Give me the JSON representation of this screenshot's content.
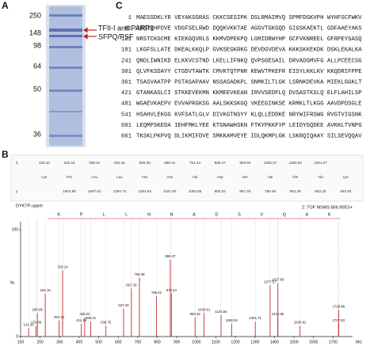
{
  "gel": {
    "panel_label": "A",
    "markers": [
      "250",
      "148",
      "98",
      "64",
      "50",
      "36"
    ],
    "bands": [
      "TFII-I and PARP1",
      "SFPQ/PSF"
    ]
  },
  "sequence": {
    "panel_label": "C",
    "lines": [
      {
        "start": "1",
        "text": "MAESSDKLYR VEYAKSGRAS CKKCSESIPK DSLRMAIMVQ SPMFDGKVPH WYHFSCFWKV"
      },
      {
        "start": "61",
        "text": "GHSIRHPDVE VDGFSELRWD DQQKVKKTAE AGGVTGKGQD GIGSKAEKTL GDFAAEYAKS"
      },
      {
        "start": "121",
        "text": "NRSTCKGCME KIEKGQVRLS KKMVDPEKPQ LGMIDRWYHP GCFVKNREEL GFRPEYSASQ"
      },
      {
        "start": "181",
        "text": "LKGFSLLATE DKEALKKQLP GVKSEGKRKG DEVDGVDEVA KKKSKKEKDK DSKLEKALKA"
      },
      {
        "start": "241",
        "text": "QNDLIWNIKD ELKKVCSTND LKELLIFNKQ QVPSGESAIL DRVADGMVFG ALLPCEECSG"
      },
      {
        "start": "301",
        "text": "QLVFKSDAYY CTGDVTAWTK CMVKTQTPNR KEWVTPKEFR EISYLKKLKV KKQDRIFPPE"
      },
      {
        "start": "361",
        "text": "TSASVAATPP PSTASAPAAV NSSASADKPL SNMKILTLGK LSRNKDEVKA MIEKLGGKLT"
      },
      {
        "start": "421",
        "text": "GTANKASLCI STKKEVEKMN KKMEEVKEAN IRVVSEDFLQ DVSASTKSLQ ELFLAHILSP"
      },
      {
        "start": "481",
        "text": "WGAEVKAEPV EVVAPRGKSG AALSKKSKGQ VKEEGINKSE KRMKLTLKGG AAVDPDSGLE"
      },
      {
        "start": "541",
        "text": "HSAHVLEKGG KVFSATLGLV DIVKGTNSYY KLQLLEDDKE NRYWIFRSWG RVGTVIGSNK"
      },
      {
        "start": "601",
        "text": "LEQMPSKEDA IEHFMKLYEE KTGNAWHSKN FTKYPKKFYP LEIDYGQDEE AVKKLTVNPG"
      },
      {
        "start": "661",
        "text": "TKSKLPKPVQ DLIKMIFDVE SMKKAMVEYE IDLQKMPLGK LSKRQIQAAY SILSEVQQAV"
      }
    ]
  },
  "ion_table": {
    "residues": [
      "Lys",
      "Pro",
      "Leu",
      "Leu",
      "Asn",
      "Asn",
      "Ala",
      "Asp",
      "Ser",
      "Val",
      "Gln",
      "Ala",
      "Lys"
    ],
    "b_label": "b",
    "y_label": "y",
    "b": [
      "129.10",
      "226.15",
      "339.24",
      "452.32",
      "566.36",
      "680.41",
      "751.44",
      "866.47",
      "953.50",
      "1052.57",
      "1180.63",
      "1251.67",
      ""
    ],
    "y": [
      "",
      "1604.86",
      "1507.81",
      "1394.72",
      "1281.64",
      "1167.60",
      "1053.55",
      "982.52",
      "867.49",
      "780.46",
      "681.39",
      "553.33",
      "482.29"
    ]
  },
  "chart_data": {
    "type": "stem",
    "panel_label": "B",
    "title": "DYKTP-upper",
    "subtitle": "2: TOF MSMS 866.90ES+",
    "sequence_letters": [
      "K",
      "P",
      "L",
      "L",
      "N",
      "N",
      "A",
      "D",
      "S",
      "V",
      "Q",
      "A",
      "K"
    ],
    "x": [
      141.1,
      179.09,
      186.09,
      226.15,
      297.13,
      315.14,
      411.19,
      428.22,
      459.21,
      536.75,
      627.33,
      667.33,
      708.39,
      795.42,
      866.47,
      872.44,
      993.49,
      1039.51,
      1126.54,
      1180.54,
      1301.71,
      1377.57,
      1416.8,
      1417.66,
      1530.81,
      1727.83,
      1728.86
    ],
    "peak_labels": [
      "141.10",
      "179.09",
      "186.09",
      "226.15",
      "297.13",
      "315.14",
      "411.19",
      "428.22",
      "459.21",
      "536.75",
      "627.33",
      "667.33",
      "708.39",
      "795.42",
      "866.47",
      "872.44",
      "993.49",
      "1039.51",
      "1126.54",
      "1180.54",
      "1301.71",
      "1377.57",
      "1416.80",
      "1417.66",
      "1530.81",
      "1727.83",
      "1728.86"
    ],
    "values": [
      8,
      10,
      22,
      40,
      15,
      62,
      12,
      18,
      14,
      10,
      26,
      45,
      55,
      38,
      72,
      40,
      18,
      22,
      20,
      12,
      14,
      48,
      18,
      50,
      10,
      12,
      25
    ],
    "color": "#c0282c",
    "xlim": [
      100,
      1800
    ],
    "xticks": [
      100,
      200,
      300,
      400,
      500,
      600,
      700,
      800,
      900,
      1000,
      1100,
      1200,
      1300,
      1400,
      1500,
      1600,
      1700
    ],
    "ylim": [
      0,
      100
    ],
    "yticks": [
      0,
      100
    ],
    "xlabel": "M/z",
    "ylabel": "%"
  }
}
